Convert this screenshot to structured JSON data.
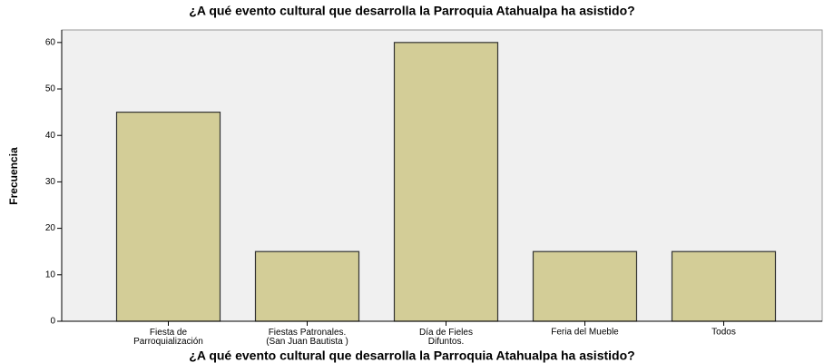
{
  "chart_data": {
    "type": "bar",
    "title": "¿A qué evento cultural que desarrolla la Parroquia Atahualpa ha asistido?",
    "x_label": "¿A qué evento cultural que desarrolla la Parroquia Atahualpa ha asistido?",
    "y_label": "Frecuencia",
    "categories": [
      "Fiesta de\nParroquialización",
      "Fiestas Patronales.\n(San Juan Bautista )",
      "Día de Fieles\nDifuntos.",
      "Feria del Mueble",
      "Todos"
    ],
    "values": [
      45,
      15,
      60,
      15,
      15
    ],
    "color": "#d3cd97",
    "ylim": [
      0,
      62.7
    ],
    "yticks": [
      0,
      10,
      20,
      30,
      40,
      50,
      60
    ],
    "grid": false
  }
}
